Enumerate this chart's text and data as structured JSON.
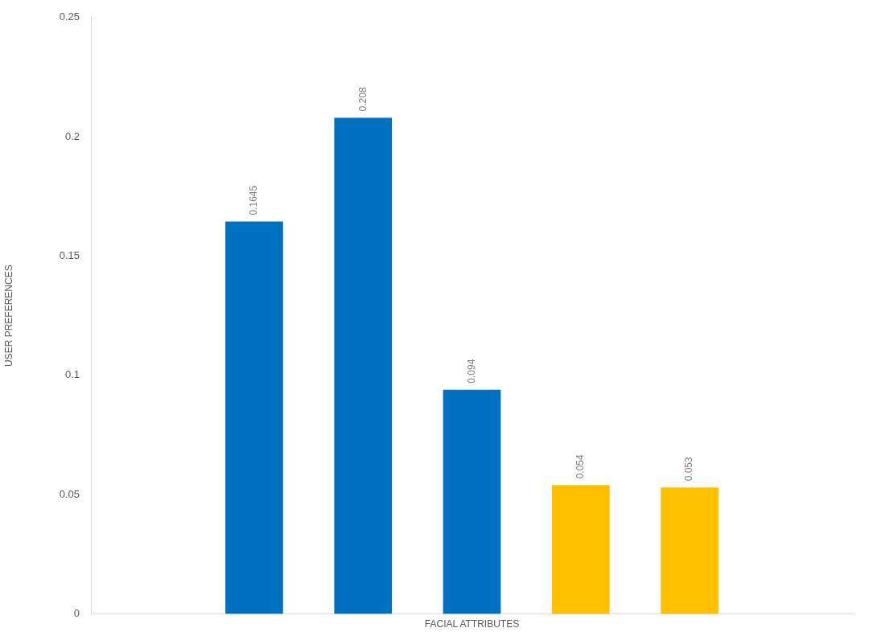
{
  "chart_data": {
    "type": "bar",
    "xlabel": "FACIAL ATTRIBUTES",
    "ylabel": "USER PREFERENCES",
    "categories": [
      null,
      null,
      null,
      null,
      null,
      null,
      null
    ],
    "values": [
      null,
      0.1645,
      0.208,
      0.094,
      0.054,
      0.053,
      null
    ],
    "colors": [
      "#0070c0",
      "#0070c0",
      "#0070c0",
      "#0070c0",
      "#ffc000",
      "#ffc000",
      "#ffc000"
    ],
    "ylim": [
      0,
      0.25
    ],
    "yticks": [
      0,
      0.05,
      0.1,
      0.15,
      0.2,
      0.25
    ],
    "tick_labels": "y",
    "data_labels": true
  }
}
